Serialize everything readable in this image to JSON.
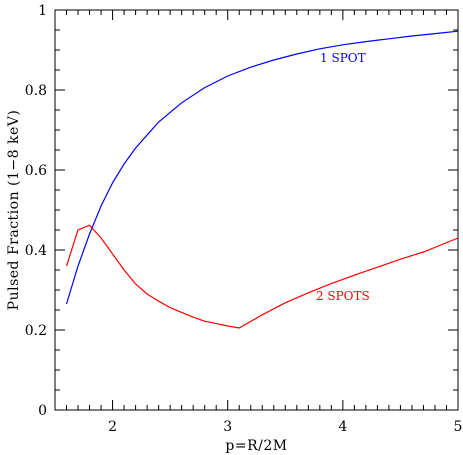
{
  "chart_data": {
    "type": "line",
    "xlabel": "p=R/2M",
    "ylabel": "Pulsed Fraction (1−8 keV)",
    "xlim": [
      1.5,
      5
    ],
    "ylim": [
      0,
      1
    ],
    "xticks": [
      2,
      3,
      4,
      5
    ],
    "yticks": [
      0,
      0.2,
      0.4,
      0.6,
      0.8,
      1
    ],
    "ytick_labels": [
      "0",
      "0.2",
      "0.4",
      "0.6",
      "0.8",
      "1"
    ],
    "grid": false,
    "series": [
      {
        "color": "#0000ff",
        "x": [
          1.6,
          1.7,
          1.8,
          1.9,
          2.0,
          2.1,
          2.2,
          2.4,
          2.6,
          2.8,
          3.0,
          3.2,
          3.4,
          3.6,
          3.8,
          4.0,
          4.2,
          4.4,
          4.6,
          4.8,
          5.0
        ],
        "y": [
          0.265,
          0.36,
          0.44,
          0.51,
          0.568,
          0.615,
          0.655,
          0.72,
          0.768,
          0.806,
          0.835,
          0.857,
          0.875,
          0.89,
          0.903,
          0.913,
          0.921,
          0.928,
          0.935,
          0.941,
          0.947
        ]
      },
      {
        "color": "#ff0000",
        "x": [
          1.6,
          1.7,
          1.8,
          1.9,
          2.0,
          2.1,
          2.2,
          2.3,
          2.4,
          2.5,
          2.6,
          2.7,
          2.8,
          2.9,
          3.0,
          3.1,
          3.3,
          3.5,
          3.7,
          3.9,
          4.1,
          4.3,
          4.5,
          4.7,
          5.0
        ],
        "y": [
          0.36,
          0.45,
          0.462,
          0.43,
          0.39,
          0.35,
          0.315,
          0.29,
          0.272,
          0.256,
          0.244,
          0.232,
          0.222,
          0.216,
          0.21,
          0.205,
          0.238,
          0.268,
          0.293,
          0.316,
          0.337,
          0.357,
          0.377,
          0.395,
          0.43
        ]
      }
    ],
    "annotations": [
      {
        "text": "1 SPOT",
        "x": 4.0,
        "y": 0.87,
        "color": "#0000ff"
      },
      {
        "text": "2 SPOTS",
        "x": 4.0,
        "y": 0.275,
        "color": "#ff0000"
      }
    ]
  }
}
